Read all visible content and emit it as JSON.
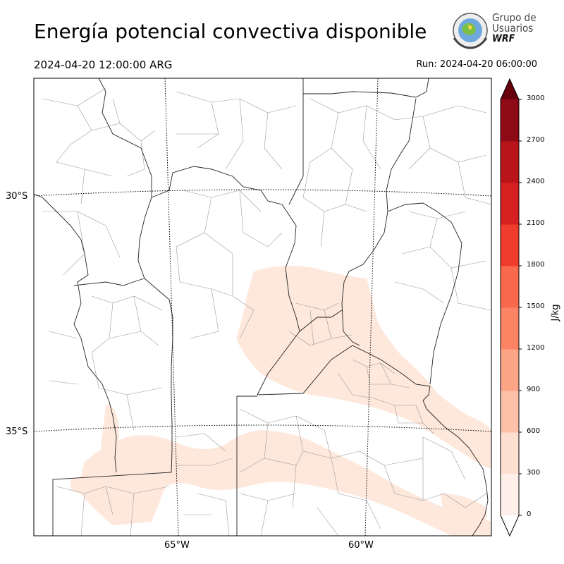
{
  "header": {
    "title": "Energía potencial convectiva disponible",
    "valid_time": "2024-04-20 12:00:00 ARG",
    "run_time": "Run: 2024-04-20 06:00:00"
  },
  "logo": {
    "line1": "Grupo de",
    "line2": "Usuarios",
    "line3": "WRF"
  },
  "map": {
    "lat_labels": [
      "30°S",
      "35°S"
    ],
    "lon_labels": [
      "65°W",
      "60°W"
    ],
    "field_color": "#fee8dc",
    "border_color": "#000000",
    "district_color": "#888888"
  },
  "colorbar": {
    "unit": "J/kg",
    "ticks": [
      "0",
      "300",
      "600",
      "900",
      "1200",
      "1500",
      "1800",
      "2100",
      "2400",
      "2700",
      "3000"
    ],
    "colors": [
      "#fff0ea",
      "#fee0d2",
      "#fcc1a8",
      "#fca486",
      "#fc8464",
      "#f9694c",
      "#f03c2c",
      "#d52120",
      "#b91419",
      "#8e0a14"
    ],
    "over_color": "#67000d",
    "under_color": "#ffffff"
  }
}
